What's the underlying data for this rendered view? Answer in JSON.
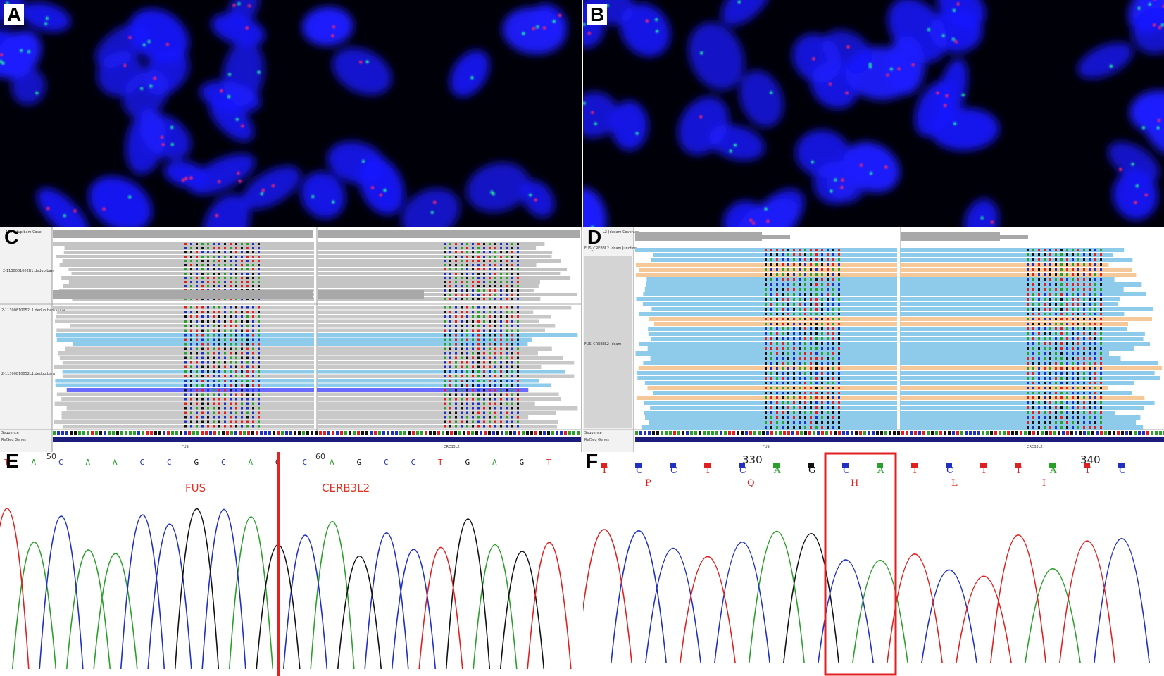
{
  "panels": {
    "A": {
      "label": "A"
    },
    "B": {
      "label": "B"
    },
    "C": {
      "label": "C",
      "track_labels": [
        "11.Redup.bam Cove",
        "2-1130081002B1.dedup.bam",
        "2-11300810052L1.dedup.bam Cove",
        "2-11300810052L1.dedup.bam"
      ],
      "bottom_labels": [
        "Sequence",
        "RefSeq Genes"
      ],
      "gene_left": "FUS",
      "gene_right": "CREB3L2"
    },
    "D": {
      "label": "D",
      "track_labels": [
        "L2 (ducam Coverage",
        "FUS_CREB3L2 (dcam Junction",
        "FUS_CREB3L2 (dcam"
      ],
      "bottom_labels": [
        "Sequence",
        "RefSeq Genes"
      ],
      "gene_left": "FUS",
      "gene_right": "CREB3L2"
    },
    "E": {
      "label": "E",
      "positions": [
        "50",
        "60"
      ],
      "bases": [
        "T",
        "A",
        "C",
        "A",
        "A",
        "C",
        "C",
        "G",
        "C",
        "A",
        "G",
        "C",
        "A",
        "G",
        "C",
        "C",
        "T",
        "G",
        "A",
        "G",
        "T"
      ],
      "gene_left": "FUS",
      "gene_right": "CERB3L2"
    },
    "F": {
      "label": "F",
      "positions": [
        "330",
        "340"
      ],
      "bases": [
        "T",
        "C",
        "C",
        "T",
        "C",
        "A",
        "G",
        "C",
        "A",
        "T",
        "C",
        "T",
        "T",
        "A",
        "T",
        "C"
      ],
      "amino_acids": [
        "P",
        "Q",
        "H",
        "L",
        "I"
      ]
    }
  },
  "colors": {
    "nucleus": "#1a1aff",
    "signal_red": "#ff2a6a",
    "signal_green": "#20f0a0",
    "base_A": "#2aa02a",
    "base_C": "#2030c0",
    "base_G": "#111111",
    "base_T": "#e02020",
    "read_gray": "#c8c8c8",
    "read_blue": "#8ecbea",
    "read_orange": "#f5c89a",
    "highlight_red": "#e02020"
  }
}
